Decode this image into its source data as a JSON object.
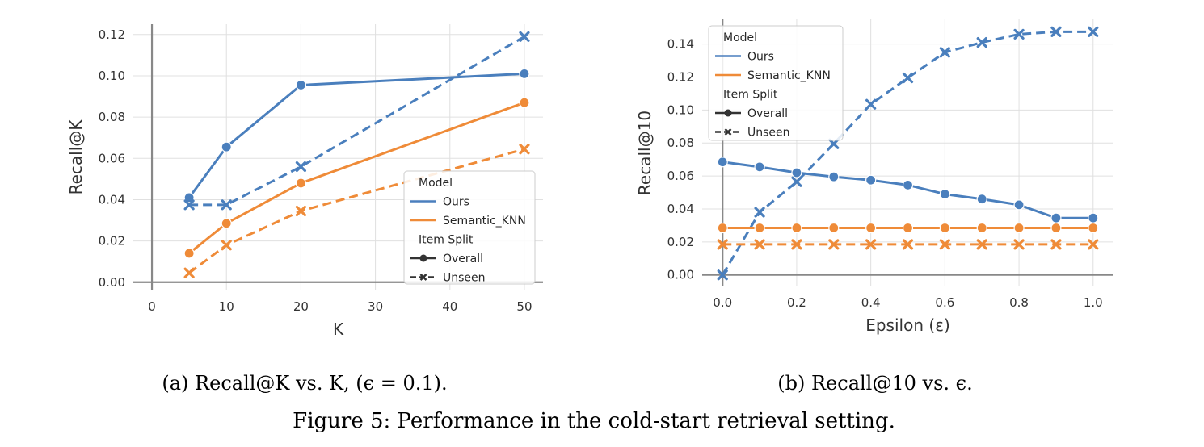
{
  "colors": {
    "ours": "#4a7fbd",
    "semantic": "#ef8b38",
    "grid": "#e0e0e0",
    "axis": "#888888"
  },
  "caption_a": "(a) Recall@K vs. K, (ϵ = 0.1).",
  "caption_b": "(b) Recall@10 vs. ϵ.",
  "figure_caption": "Figure 5: Performance in the cold-start retrieval setting.",
  "chart_data": [
    {
      "type": "line",
      "xlabel": "K",
      "ylabel": "Recall@K",
      "xlim": [
        -2.5,
        52.5
      ],
      "ylim": [
        -0.004,
        0.125
      ],
      "xticks": [
        0,
        10,
        20,
        30,
        40,
        50
      ],
      "yticks": [
        0.0,
        0.02,
        0.04,
        0.06,
        0.08,
        0.1,
        0.12
      ],
      "x": [
        5,
        10,
        20,
        50
      ],
      "grid": true,
      "legend_position": "lower-right",
      "legend": {
        "hue_title": "Model",
        "hue_items": [
          "Ours",
          "Semantic_KNN"
        ],
        "style_title": "Item Split",
        "style_items": [
          "Overall",
          "Unseen"
        ]
      },
      "series": [
        {
          "name": "Ours",
          "split": "Overall",
          "values": [
            0.041,
            0.0655,
            0.0955,
            0.101
          ]
        },
        {
          "name": "Ours",
          "split": "Unseen",
          "values": [
            0.0375,
            0.0375,
            0.056,
            0.119
          ]
        },
        {
          "name": "Semantic_KNN",
          "split": "Overall",
          "values": [
            0.014,
            0.0285,
            0.048,
            0.087
          ]
        },
        {
          "name": "Semantic_KNN",
          "split": "Unseen",
          "values": [
            0.0045,
            0.018,
            0.0345,
            0.0645
          ]
        }
      ]
    },
    {
      "type": "line",
      "xlabel": "Epsilon (ε)",
      "ylabel": "Recall@10",
      "xlim": [
        -0.055,
        1.055
      ],
      "ylim": [
        -0.007,
        0.155
      ],
      "xticks": [
        0.0,
        0.2,
        0.4,
        0.6,
        0.8,
        1.0
      ],
      "yticks": [
        0.0,
        0.02,
        0.04,
        0.06,
        0.08,
        0.1,
        0.12,
        0.14
      ],
      "x": [
        0.0,
        0.1,
        0.2,
        0.3,
        0.4,
        0.5,
        0.6,
        0.7,
        0.8,
        0.9,
        1.0
      ],
      "grid": true,
      "legend_position": "upper-left",
      "legend": {
        "hue_title": "Model",
        "hue_items": [
          "Ours",
          "Semantic_KNN"
        ],
        "style_title": "Item Split",
        "style_items": [
          "Overall",
          "Unseen"
        ]
      },
      "series": [
        {
          "name": "Ours",
          "split": "Overall",
          "values": [
            0.0685,
            0.0655,
            0.062,
            0.0595,
            0.0575,
            0.0545,
            0.049,
            0.046,
            0.0425,
            0.0345,
            0.0345
          ]
        },
        {
          "name": "Ours",
          "split": "Unseen",
          "values": [
            0.0,
            0.038,
            0.0565,
            0.0795,
            0.1035,
            0.1195,
            0.135,
            0.141,
            0.146,
            0.1475,
            0.1475
          ]
        },
        {
          "name": "Semantic_KNN",
          "split": "Overall",
          "values": [
            0.0285,
            0.0285,
            0.0285,
            0.0285,
            0.0285,
            0.0285,
            0.0285,
            0.0285,
            0.0285,
            0.0285,
            0.0285
          ]
        },
        {
          "name": "Semantic_KNN",
          "split": "Unseen",
          "values": [
            0.0185,
            0.0185,
            0.0185,
            0.0185,
            0.0185,
            0.0185,
            0.0185,
            0.0185,
            0.0185,
            0.0185,
            0.0185
          ]
        }
      ]
    }
  ]
}
